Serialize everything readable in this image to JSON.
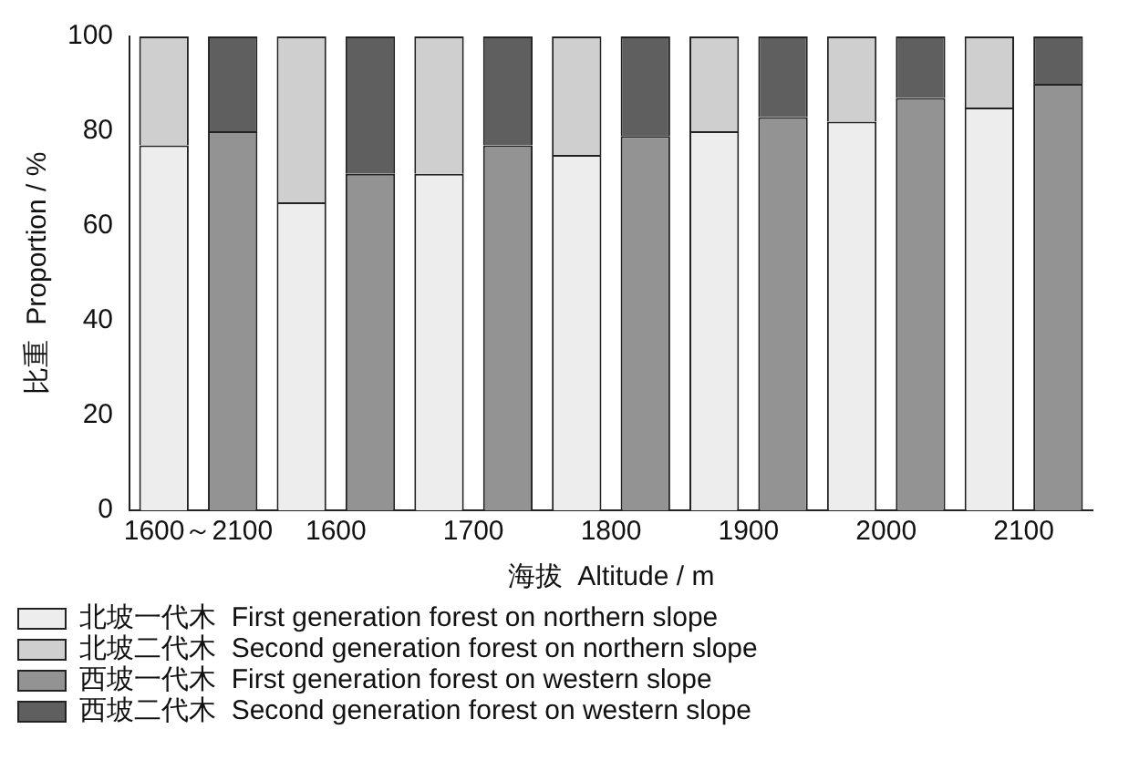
{
  "chart_data": {
    "type": "bar",
    "stacked": true,
    "xlabel": "海拔  Altitude / m",
    "ylabel": "比重  Proportion / %",
    "categories": [
      "1600～2100",
      null,
      "1600",
      null,
      "1700",
      null,
      "1800",
      null,
      "1900",
      null,
      "2000",
      null,
      "2100",
      null
    ],
    "series": [
      {
        "name": "北坡一代木  First generation forest on northern slope",
        "color": "#ededed",
        "values": [
          77,
          null,
          65,
          null,
          71,
          null,
          75,
          null,
          80,
          null,
          82,
          null,
          85,
          null
        ]
      },
      {
        "name": "北坡二代木  Second generation forest on northern slope",
        "color": "#cfcfcf",
        "values": [
          23,
          null,
          35,
          null,
          29,
          null,
          25,
          null,
          20,
          null,
          18,
          null,
          15,
          null
        ]
      },
      {
        "name": "西坡一代木  First generation forest on western slope",
        "color": "#939393",
        "values": [
          null,
          80,
          null,
          71,
          null,
          77,
          null,
          79,
          null,
          83,
          null,
          87,
          null,
          90
        ]
      },
      {
        "name": "西坡二代木  Second generation forest on western slope",
        "color": "#5f5f5f",
        "values": [
          null,
          20,
          null,
          29,
          null,
          23,
          null,
          21,
          null,
          17,
          null,
          13,
          null,
          10
        ]
      }
    ],
    "ylim": [
      0,
      100
    ],
    "yticks": [
      0,
      20,
      40,
      60,
      80,
      100
    ],
    "grid": false,
    "legend": "bottom"
  }
}
